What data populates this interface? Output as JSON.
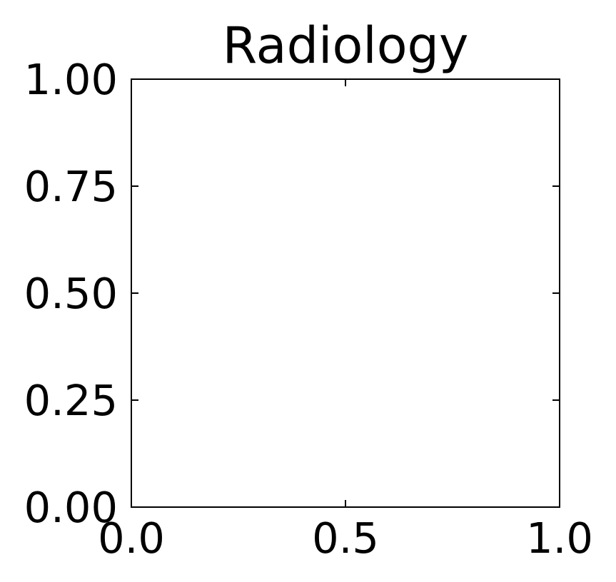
{
  "chart_data": {
    "type": "scatter",
    "title": "Radiology",
    "xlabel": "",
    "ylabel": "",
    "xlim": [
      0.0,
      1.0
    ],
    "ylim": [
      0.0,
      1.0
    ],
    "x_ticks": [
      0.0,
      0.5,
      1.0
    ],
    "x_tick_labels": [
      "0.0",
      "0.5",
      "1.0"
    ],
    "y_ticks": [
      0.0,
      0.25,
      0.5,
      0.75,
      1.0
    ],
    "y_tick_labels": [
      "0.00",
      "0.25",
      "0.50",
      "0.75",
      "1.00"
    ],
    "grid": false,
    "series": []
  }
}
